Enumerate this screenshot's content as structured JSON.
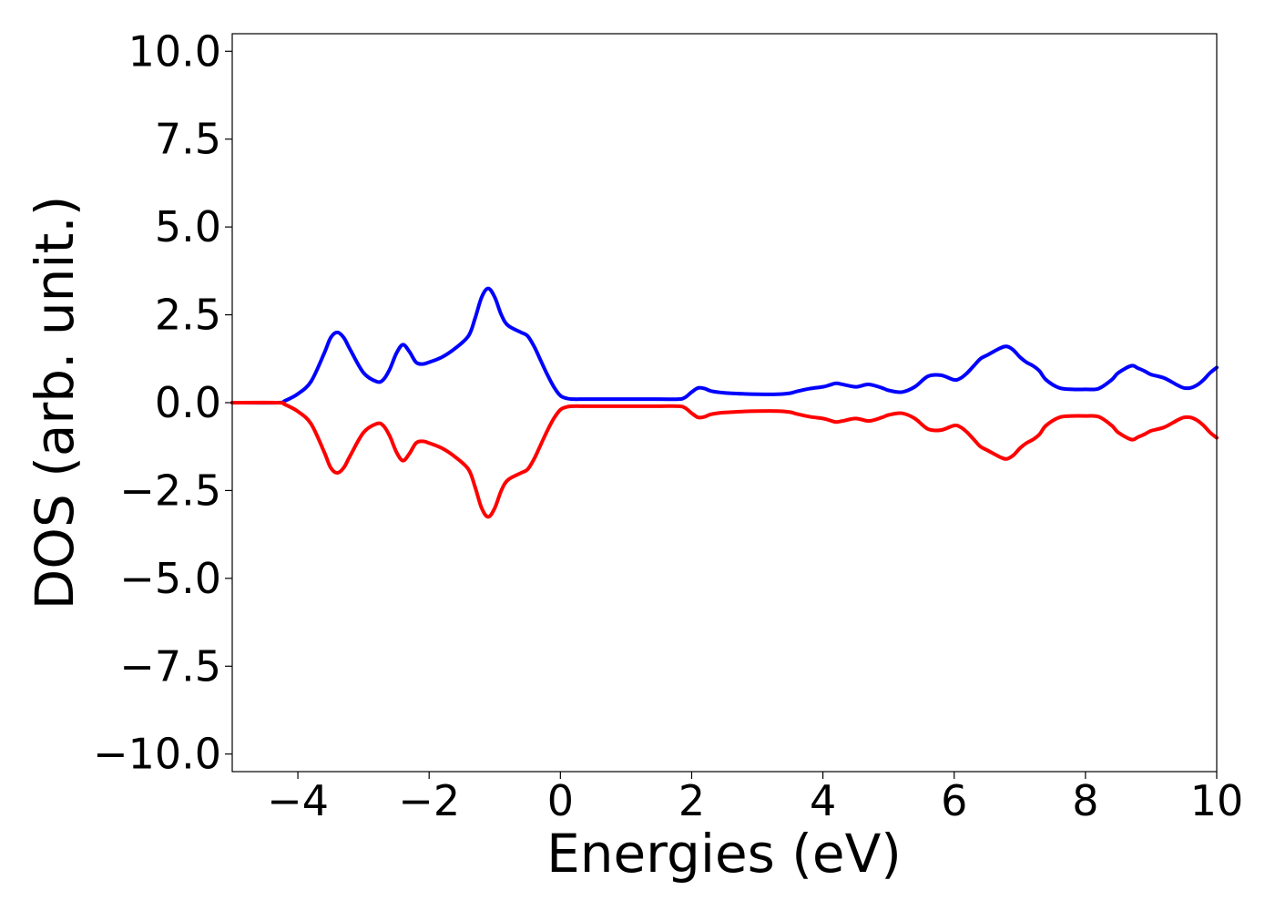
{
  "chart_data": {
    "type": "line",
    "title": "",
    "xlabel": "Energies (eV)",
    "ylabel": "DOS (arb. unit.)",
    "xlim": [
      -5,
      10
    ],
    "ylim": [
      -10.5,
      10.5
    ],
    "x_ticks": [
      -4,
      -2,
      0,
      2,
      4,
      6,
      8,
      10
    ],
    "x_tick_labels": [
      "−4",
      "−2",
      "0",
      "2",
      "4",
      "6",
      "8",
      "10"
    ],
    "y_ticks": [
      10.0,
      7.5,
      5.0,
      2.5,
      0.0,
      -2.5,
      -5.0,
      -7.5,
      -10.0
    ],
    "y_tick_labels": [
      "10.0",
      "7.5",
      "5.0",
      "2.5",
      "0.0",
      "−2.5",
      "−5.0",
      "−7.5",
      "−10.0"
    ],
    "grid": false,
    "legend": "none",
    "series": [
      {
        "color": "#0000ff",
        "x": [
          -5,
          -4.3,
          -4.2,
          -4.0,
          -3.8,
          -3.6,
          -3.5,
          -3.4,
          -3.3,
          -3.2,
          -3.0,
          -2.8,
          -2.7,
          -2.6,
          -2.5,
          -2.4,
          -2.3,
          -2.2,
          -2.1,
          -2.0,
          -1.8,
          -1.6,
          -1.4,
          -1.3,
          -1.2,
          -1.1,
          -1.0,
          -0.9,
          -0.8,
          -0.6,
          -0.5,
          -0.4,
          -0.3,
          -0.2,
          -0.1,
          0.0,
          0.1,
          0.2,
          0.4,
          1.0,
          1.5,
          1.8,
          1.9,
          2.0,
          2.1,
          2.2,
          2.3,
          2.5,
          2.8,
          3.0,
          3.3,
          3.5,
          3.6,
          3.8,
          4.0,
          4.1,
          4.2,
          4.3,
          4.5,
          4.7,
          4.9,
          5.0,
          5.2,
          5.4,
          5.6,
          5.8,
          6.0,
          6.1,
          6.2,
          6.3,
          6.4,
          6.5,
          6.7,
          6.8,
          6.9,
          7.0,
          7.1,
          7.2,
          7.3,
          7.4,
          7.6,
          7.8,
          8.0,
          8.2,
          8.4,
          8.5,
          8.7,
          8.8,
          8.9,
          9.0,
          9.2,
          9.4,
          9.5,
          9.6,
          9.7,
          9.8,
          9.9,
          10.0
        ],
        "values": [
          0.0,
          0.0,
          0.05,
          0.25,
          0.6,
          1.4,
          1.85,
          2.0,
          1.85,
          1.5,
          0.85,
          0.6,
          0.65,
          0.95,
          1.4,
          1.65,
          1.45,
          1.15,
          1.1,
          1.15,
          1.3,
          1.55,
          1.9,
          2.4,
          3.0,
          3.25,
          3.0,
          2.5,
          2.2,
          2.0,
          1.9,
          1.6,
          1.2,
          0.8,
          0.45,
          0.2,
          0.12,
          0.1,
          0.1,
          0.1,
          0.1,
          0.1,
          0.15,
          0.3,
          0.42,
          0.4,
          0.33,
          0.28,
          0.25,
          0.24,
          0.24,
          0.27,
          0.32,
          0.4,
          0.45,
          0.5,
          0.55,
          0.52,
          0.45,
          0.52,
          0.42,
          0.35,
          0.3,
          0.45,
          0.75,
          0.78,
          0.65,
          0.7,
          0.85,
          1.05,
          1.25,
          1.35,
          1.55,
          1.6,
          1.5,
          1.3,
          1.15,
          1.05,
          0.9,
          0.65,
          0.42,
          0.38,
          0.38,
          0.4,
          0.65,
          0.85,
          1.05,
          0.98,
          0.9,
          0.8,
          0.7,
          0.5,
          0.42,
          0.42,
          0.5,
          0.65,
          0.85,
          1.0
        ]
      },
      {
        "color": "#ff0000",
        "x": [
          -5,
          -4.3,
          -4.2,
          -4.0,
          -3.8,
          -3.6,
          -3.5,
          -3.4,
          -3.3,
          -3.2,
          -3.0,
          -2.8,
          -2.7,
          -2.6,
          -2.5,
          -2.4,
          -2.3,
          -2.2,
          -2.1,
          -2.0,
          -1.8,
          -1.6,
          -1.4,
          -1.3,
          -1.2,
          -1.1,
          -1.0,
          -0.9,
          -0.8,
          -0.6,
          -0.5,
          -0.4,
          -0.3,
          -0.2,
          -0.1,
          0.0,
          0.1,
          0.2,
          0.4,
          1.0,
          1.5,
          1.8,
          1.9,
          2.0,
          2.1,
          2.2,
          2.3,
          2.5,
          2.8,
          3.0,
          3.3,
          3.5,
          3.6,
          3.8,
          4.0,
          4.1,
          4.2,
          4.3,
          4.5,
          4.7,
          4.9,
          5.0,
          5.2,
          5.4,
          5.6,
          5.8,
          6.0,
          6.1,
          6.2,
          6.3,
          6.4,
          6.5,
          6.7,
          6.8,
          6.9,
          7.0,
          7.1,
          7.2,
          7.3,
          7.4,
          7.6,
          7.8,
          8.0,
          8.2,
          8.4,
          8.5,
          8.7,
          8.8,
          8.9,
          9.0,
          9.2,
          9.4,
          9.5,
          9.6,
          9.7,
          9.8,
          9.9,
          10.0
        ],
        "values": [
          0.0,
          0.0,
          -0.05,
          -0.25,
          -0.6,
          -1.4,
          -1.85,
          -2.0,
          -1.85,
          -1.5,
          -0.85,
          -0.6,
          -0.65,
          -0.95,
          -1.4,
          -1.65,
          -1.45,
          -1.15,
          -1.1,
          -1.15,
          -1.3,
          -1.55,
          -1.9,
          -2.4,
          -3.0,
          -3.25,
          -3.0,
          -2.5,
          -2.2,
          -2.0,
          -1.9,
          -1.6,
          -1.2,
          -0.8,
          -0.45,
          -0.2,
          -0.12,
          -0.1,
          -0.1,
          -0.1,
          -0.1,
          -0.1,
          -0.15,
          -0.3,
          -0.42,
          -0.4,
          -0.33,
          -0.28,
          -0.25,
          -0.24,
          -0.24,
          -0.27,
          -0.32,
          -0.4,
          -0.45,
          -0.5,
          -0.55,
          -0.52,
          -0.45,
          -0.52,
          -0.42,
          -0.35,
          -0.3,
          -0.45,
          -0.75,
          -0.78,
          -0.65,
          -0.7,
          -0.85,
          -1.05,
          -1.25,
          -1.35,
          -1.55,
          -1.6,
          -1.5,
          -1.3,
          -1.15,
          -1.05,
          -0.9,
          -0.65,
          -0.42,
          -0.38,
          -0.38,
          -0.4,
          -0.65,
          -0.85,
          -1.05,
          -0.98,
          -0.9,
          -0.8,
          -0.7,
          -0.5,
          -0.42,
          -0.42,
          -0.5,
          -0.65,
          -0.85,
          -1.0
        ]
      }
    ]
  }
}
